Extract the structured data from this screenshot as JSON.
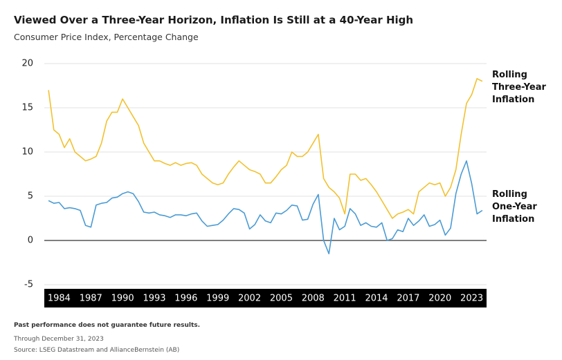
{
  "chart_data": {
    "type": "line",
    "title": "Viewed Over a Three-Year Horizon, Inflation Is Still at a 40-Year High",
    "subtitle": "Consumer Price Index, Percentage Change",
    "x": [
      1983,
      1983.5,
      1984,
      1984.5,
      1985,
      1985.5,
      1986,
      1986.5,
      1987,
      1987.5,
      1988,
      1988.5,
      1989,
      1989.5,
      1990,
      1990.5,
      1991,
      1991.5,
      1992,
      1992.5,
      1993,
      1993.5,
      1994,
      1994.5,
      1995,
      1995.5,
      1996,
      1996.5,
      1997,
      1997.5,
      1998,
      1998.5,
      1999,
      1999.5,
      2000,
      2000.5,
      2001,
      2001.5,
      2002,
      2002.5,
      2003,
      2003.5,
      2004,
      2004.5,
      2005,
      2005.5,
      2006,
      2006.5,
      2007,
      2007.5,
      2008,
      2008.5,
      2009,
      2009.5,
      2010,
      2010.5,
      2011,
      2011.5,
      2012,
      2012.5,
      2013,
      2013.5,
      2014,
      2014.5,
      2015,
      2015.5,
      2016,
      2016.5,
      2017,
      2017.5,
      2018,
      2018.5,
      2019,
      2019.5,
      2020,
      2020.5,
      2021,
      2021.5,
      2022,
      2022.5,
      2023,
      2023.5,
      2024
    ],
    "series": [
      {
        "name": "Rolling Three-Year Inflation",
        "color": "#f2c12e",
        "values": [
          17,
          12.5,
          12,
          10.5,
          11.5,
          10,
          9.5,
          9,
          9.2,
          9.5,
          11,
          13.5,
          14.5,
          14.5,
          16,
          15,
          14,
          13,
          11,
          10,
          9,
          9,
          8.7,
          8.5,
          8.8,
          8.5,
          8.7,
          8.8,
          8.5,
          7.5,
          7,
          6.5,
          6.3,
          6.5,
          7.5,
          8.3,
          9,
          8.5,
          8,
          7.8,
          7.5,
          6.5,
          6.5,
          7.2,
          8,
          8.5,
          10,
          9.5,
          9.5,
          10,
          11,
          12,
          7,
          6,
          5.5,
          4.8,
          3,
          7.5,
          7.5,
          6.8,
          7,
          6.3,
          5.5,
          4.5,
          3.5,
          2.5,
          3,
          3.2,
          3.5,
          3,
          5.5,
          6,
          6.5,
          6.3,
          6.5,
          5,
          6,
          8,
          12,
          15.5,
          16.5,
          18.3,
          18
        ]
      },
      {
        "name": "Rolling One-Year Inflation",
        "color": "#4a9bd4",
        "values": [
          4.5,
          4.2,
          4.3,
          3.6,
          3.7,
          3.6,
          3.4,
          1.7,
          1.5,
          4,
          4.2,
          4.3,
          4.8,
          4.9,
          5.3,
          5.5,
          5.3,
          4.4,
          3.2,
          3.1,
          3.2,
          2.9,
          2.8,
          2.6,
          2.9,
          2.9,
          2.8,
          3,
          3.1,
          2.2,
          1.6,
          1.7,
          1.8,
          2.3,
          3,
          3.6,
          3.5,
          3.1,
          1.3,
          1.8,
          2.9,
          2.2,
          2,
          3.1,
          3,
          3.4,
          4,
          3.9,
          2.3,
          2.4,
          4.1,
          5.2,
          0,
          -1.5,
          2.5,
          1.2,
          1.6,
          3.6,
          3,
          1.7,
          2,
          1.6,
          1.5,
          2,
          0,
          0.2,
          1.2,
          1,
          2.5,
          1.7,
          2.2,
          2.9,
          1.6,
          1.8,
          2.3,
          0.6,
          1.4,
          5.3,
          7.5,
          9,
          6.4,
          3,
          3.4
        ]
      }
    ],
    "xlim": [
      1982.6,
      2024.4
    ],
    "xticks": [
      1984,
      1987,
      1990,
      1993,
      1996,
      1999,
      2002,
      2005,
      2008,
      2011,
      2014,
      2017,
      2020,
      2023
    ],
    "ylim": [
      -5,
      20
    ],
    "yticks": [
      -5,
      0,
      5,
      10,
      15,
      20
    ],
    "grid": true,
    "notes": [
      "Past performance does not guarantee future results.",
      "Through December 31, 2023",
      "Source: LSEG Datastream and AllianceBernstein (AB)"
    ]
  }
}
